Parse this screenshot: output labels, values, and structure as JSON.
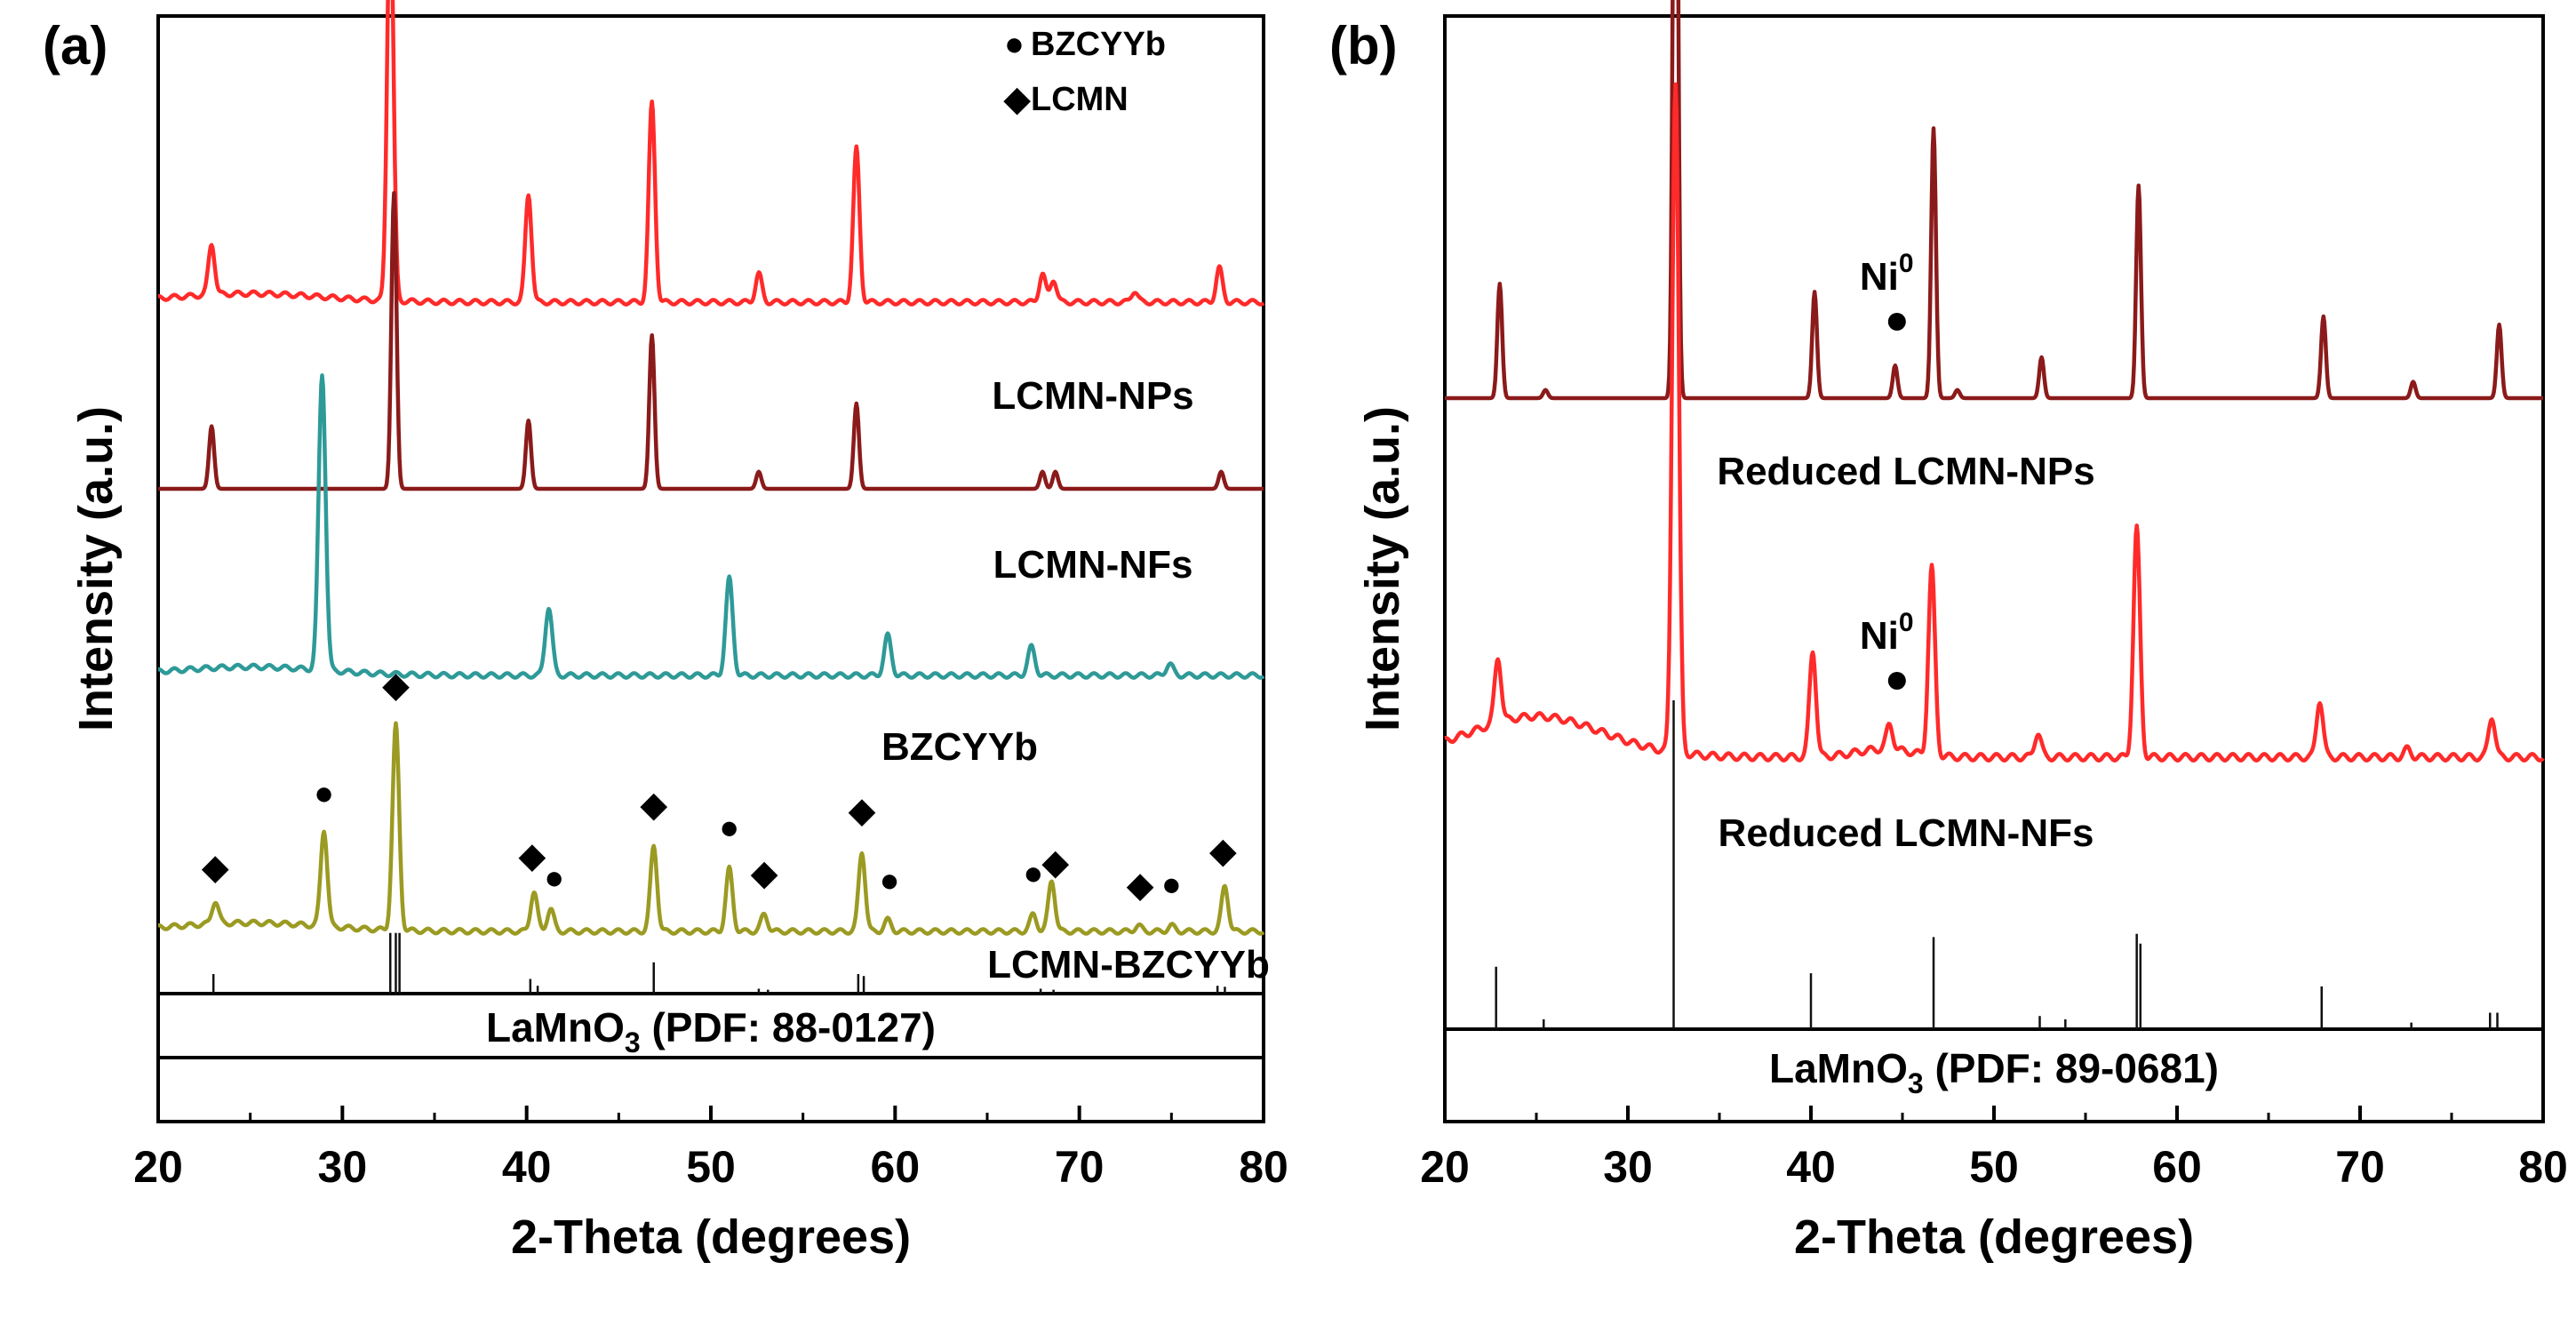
{
  "chart_data": [
    {
      "type": "line",
      "panel_label": "(a)",
      "xlabel": "2-Theta (degrees)",
      "ylabel": "Intensity (a.u.)",
      "xlim": [
        20,
        80
      ],
      "xticks": [
        "20",
        "30",
        "40",
        "50",
        "60",
        "70",
        "80"
      ],
      "legend": [
        {
          "marker": "●",
          "label": "BZCYYb"
        },
        {
          "marker": "◆",
          "label": "LCMN"
        }
      ],
      "series": [
        {
          "name": "LCMN-NPs",
          "color": "#ff2a2a",
          "peaks": [
            [
              22.9,
              0.09
            ],
            [
              32.6,
              0.71
            ],
            [
              40.1,
              0.19
            ],
            [
              46.8,
              0.35
            ],
            [
              52.6,
              0.05
            ],
            [
              57.9,
              0.27
            ],
            [
              68.0,
              0.05
            ],
            [
              68.6,
              0.04
            ],
            [
              73.0,
              0.02
            ],
            [
              77.6,
              0.06
            ]
          ]
        },
        {
          "name": "LCMN-NFs",
          "color": "#8b1a1a",
          "peaks": [
            [
              22.9,
              0.11
            ],
            [
              32.8,
              0.52
            ],
            [
              40.1,
              0.12
            ],
            [
              46.8,
              0.27
            ],
            [
              52.6,
              0.03
            ],
            [
              57.9,
              0.15
            ],
            [
              68.0,
              0.03
            ],
            [
              68.7,
              0.03
            ],
            [
              77.7,
              0.03
            ]
          ]
        },
        {
          "name": "BZCYYb",
          "color": "#2e9a98",
          "peaks": [
            [
              28.9,
              0.52
            ],
            [
              41.2,
              0.12
            ],
            [
              51.0,
              0.17
            ],
            [
              59.6,
              0.07
            ],
            [
              67.4,
              0.05
            ],
            [
              74.9,
              0.02
            ]
          ]
        },
        {
          "name": "LCMN-BZCYYb",
          "color": "#9b9a22",
          "peaks": [
            [
              23.1,
              0.04
            ],
            [
              29.0,
              0.17
            ],
            [
              32.9,
              0.36
            ],
            [
              40.4,
              0.07
            ],
            [
              41.3,
              0.04
            ],
            [
              46.9,
              0.15
            ],
            [
              51.0,
              0.11
            ],
            [
              52.9,
              0.03
            ],
            [
              58.2,
              0.14
            ],
            [
              59.6,
              0.02
            ],
            [
              67.5,
              0.03
            ],
            [
              68.5,
              0.09
            ],
            [
              73.2,
              0.01
            ],
            [
              75.0,
              0.01
            ],
            [
              77.9,
              0.08
            ]
          ]
        }
      ],
      "markers": [
        {
          "x": 23.1,
          "symbol": "◆"
        },
        {
          "x": 29.0,
          "symbol": "●"
        },
        {
          "x": 32.9,
          "symbol": "◆"
        },
        {
          "x": 40.3,
          "symbol": "◆"
        },
        {
          "x": 41.5,
          "symbol": "●"
        },
        {
          "x": 46.9,
          "symbol": "◆"
        },
        {
          "x": 51.0,
          "symbol": "●"
        },
        {
          "x": 52.9,
          "symbol": "◆"
        },
        {
          "x": 58.2,
          "symbol": "◆"
        },
        {
          "x": 59.7,
          "symbol": "●"
        },
        {
          "x": 67.5,
          "symbol": "●"
        },
        {
          "x": 68.7,
          "symbol": "◆"
        },
        {
          "x": 73.3,
          "symbol": "◆"
        },
        {
          "x": 75.0,
          "symbol": "●"
        },
        {
          "x": 77.8,
          "symbol": "◆"
        }
      ],
      "reference": {
        "label_main": "LaMnO",
        "label_sub": "3",
        "label_rest": " (PDF: 88-0127)",
        "lines": [
          [
            23.0,
            0.2
          ],
          [
            32.6,
            0.62
          ],
          [
            32.9,
            0.62
          ],
          [
            33.1,
            0.62
          ],
          [
            40.2,
            0.15
          ],
          [
            40.6,
            0.08
          ],
          [
            46.9,
            0.32
          ],
          [
            52.6,
            0.05
          ],
          [
            53.1,
            0.04
          ],
          [
            58.0,
            0.2
          ],
          [
            58.3,
            0.18
          ],
          [
            67.9,
            0.05
          ],
          [
            68.6,
            0.04
          ],
          [
            77.5,
            0.08
          ],
          [
            77.9,
            0.07
          ]
        ]
      }
    },
    {
      "type": "line",
      "panel_label": "(b)",
      "xlabel": "2-Theta (degrees)",
      "ylabel": "Intensity (a.u.)",
      "xlim": [
        20,
        80
      ],
      "xticks": [
        "20",
        "30",
        "40",
        "50",
        "60",
        "70",
        "80"
      ],
      "series": [
        {
          "name": "Reduced LCMN-NPs",
          "color": "#8b1a1a",
          "peaks": [
            [
              23.0,
              0.14
            ],
            [
              25.5,
              0.01
            ],
            [
              32.6,
              1.0
            ],
            [
              40.2,
              0.13
            ],
            [
              44.6,
              0.04
            ],
            [
              46.7,
              0.33
            ],
            [
              48.0,
              0.01
            ],
            [
              52.6,
              0.05
            ],
            [
              57.9,
              0.26
            ],
            [
              68.0,
              0.1
            ],
            [
              72.9,
              0.02
            ],
            [
              77.6,
              0.09
            ]
          ]
        },
        {
          "name": "Reduced LCMN-NFs",
          "color": "#ff2a2a",
          "peaks": [
            [
              22.9,
              0.08
            ],
            [
              32.6,
              0.82
            ],
            [
              40.1,
              0.13
            ],
            [
              44.3,
              0.03
            ],
            [
              46.6,
              0.23
            ],
            [
              52.4,
              0.03
            ],
            [
              57.8,
              0.28
            ],
            [
              67.8,
              0.07
            ],
            [
              72.6,
              0.01
            ],
            [
              77.2,
              0.05
            ]
          ]
        }
      ],
      "ni_annotations": [
        {
          "series": "Reduced LCMN-NPs",
          "x": 44.7,
          "text": "Ni",
          "sup": "0"
        },
        {
          "series": "Reduced LCMN-NFs",
          "x": 44.7,
          "text": "Ni",
          "sup": "0"
        }
      ],
      "reference": {
        "label_main": "LaMnO",
        "label_sub": "3",
        "label_rest": " (PDF: 89-0681)",
        "lines": [
          [
            22.8,
            0.19
          ],
          [
            25.4,
            0.03
          ],
          [
            32.5,
            1.0
          ],
          [
            40.0,
            0.17
          ],
          [
            46.7,
            0.28
          ],
          [
            52.5,
            0.04
          ],
          [
            53.9,
            0.03
          ],
          [
            57.8,
            0.29
          ],
          [
            58.0,
            0.26
          ],
          [
            67.9,
            0.13
          ],
          [
            72.8,
            0.02
          ],
          [
            77.1,
            0.05
          ],
          [
            77.5,
            0.05
          ]
        ]
      }
    }
  ]
}
